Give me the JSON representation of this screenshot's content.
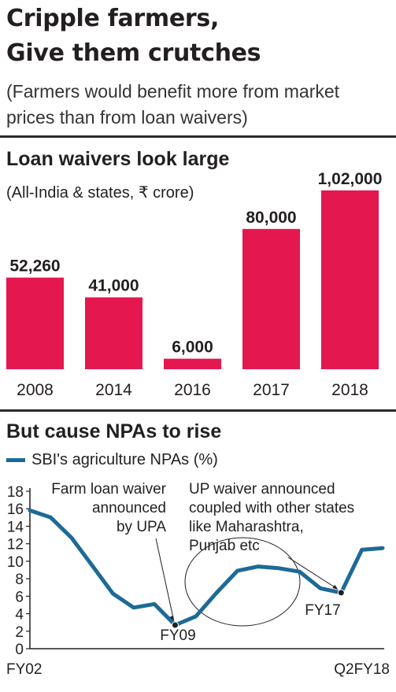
{
  "headline": {
    "line1": "Cripple farmers,",
    "line2": "Give them crutches"
  },
  "subhead": {
    "line1": "(Farmers would benefit more from market",
    "line2": "prices than from loan waivers)"
  },
  "colors": {
    "bar": "#e5174f",
    "line": "#1d6a96",
    "rule": "#2b2b2b"
  },
  "chart_data": [
    {
      "type": "bar",
      "title": "Loan waivers look large",
      "subtitle": "(All-India & states, ₹ crore)",
      "categories": [
        "2008",
        "2014",
        "2016",
        "2017",
        "2018"
      ],
      "values": [
        52260,
        41000,
        6000,
        80000,
        102000
      ],
      "value_labels": [
        "52,260",
        "41,000",
        "6,000",
        "80,000",
        "1,02,000"
      ],
      "ylim": [
        0,
        110000
      ],
      "grid": false
    },
    {
      "type": "line",
      "title": "But cause NPAs to rise",
      "series": [
        {
          "name": "SBI's agriculture NPAs (%)",
          "values": [
            15.8,
            15.0,
            12.7,
            9.5,
            6.3,
            4.7,
            5.1,
            2.7,
            3.7,
            6.4,
            8.9,
            9.4,
            9.2,
            8.8,
            6.9,
            6.4,
            11.3,
            11.5
          ]
        }
      ],
      "x_tick_labels": [
        "FY02",
        "Q2FY18"
      ],
      "ylim": [
        0,
        18
      ],
      "yticks": [
        0,
        2,
        4,
        6,
        8,
        10,
        12,
        14,
        16,
        18
      ],
      "grid": false,
      "legend": "top-left",
      "annotations": {
        "fy09_marker": "FY09",
        "fy17_marker": "FY17",
        "upa_note": [
          "Farm loan waiver",
          "announced",
          "by UPA"
        ],
        "up_note": [
          "UP waiver announced",
          "coupled with other states",
          "like Maharashtra,",
          "Punjab etc"
        ]
      }
    }
  ]
}
